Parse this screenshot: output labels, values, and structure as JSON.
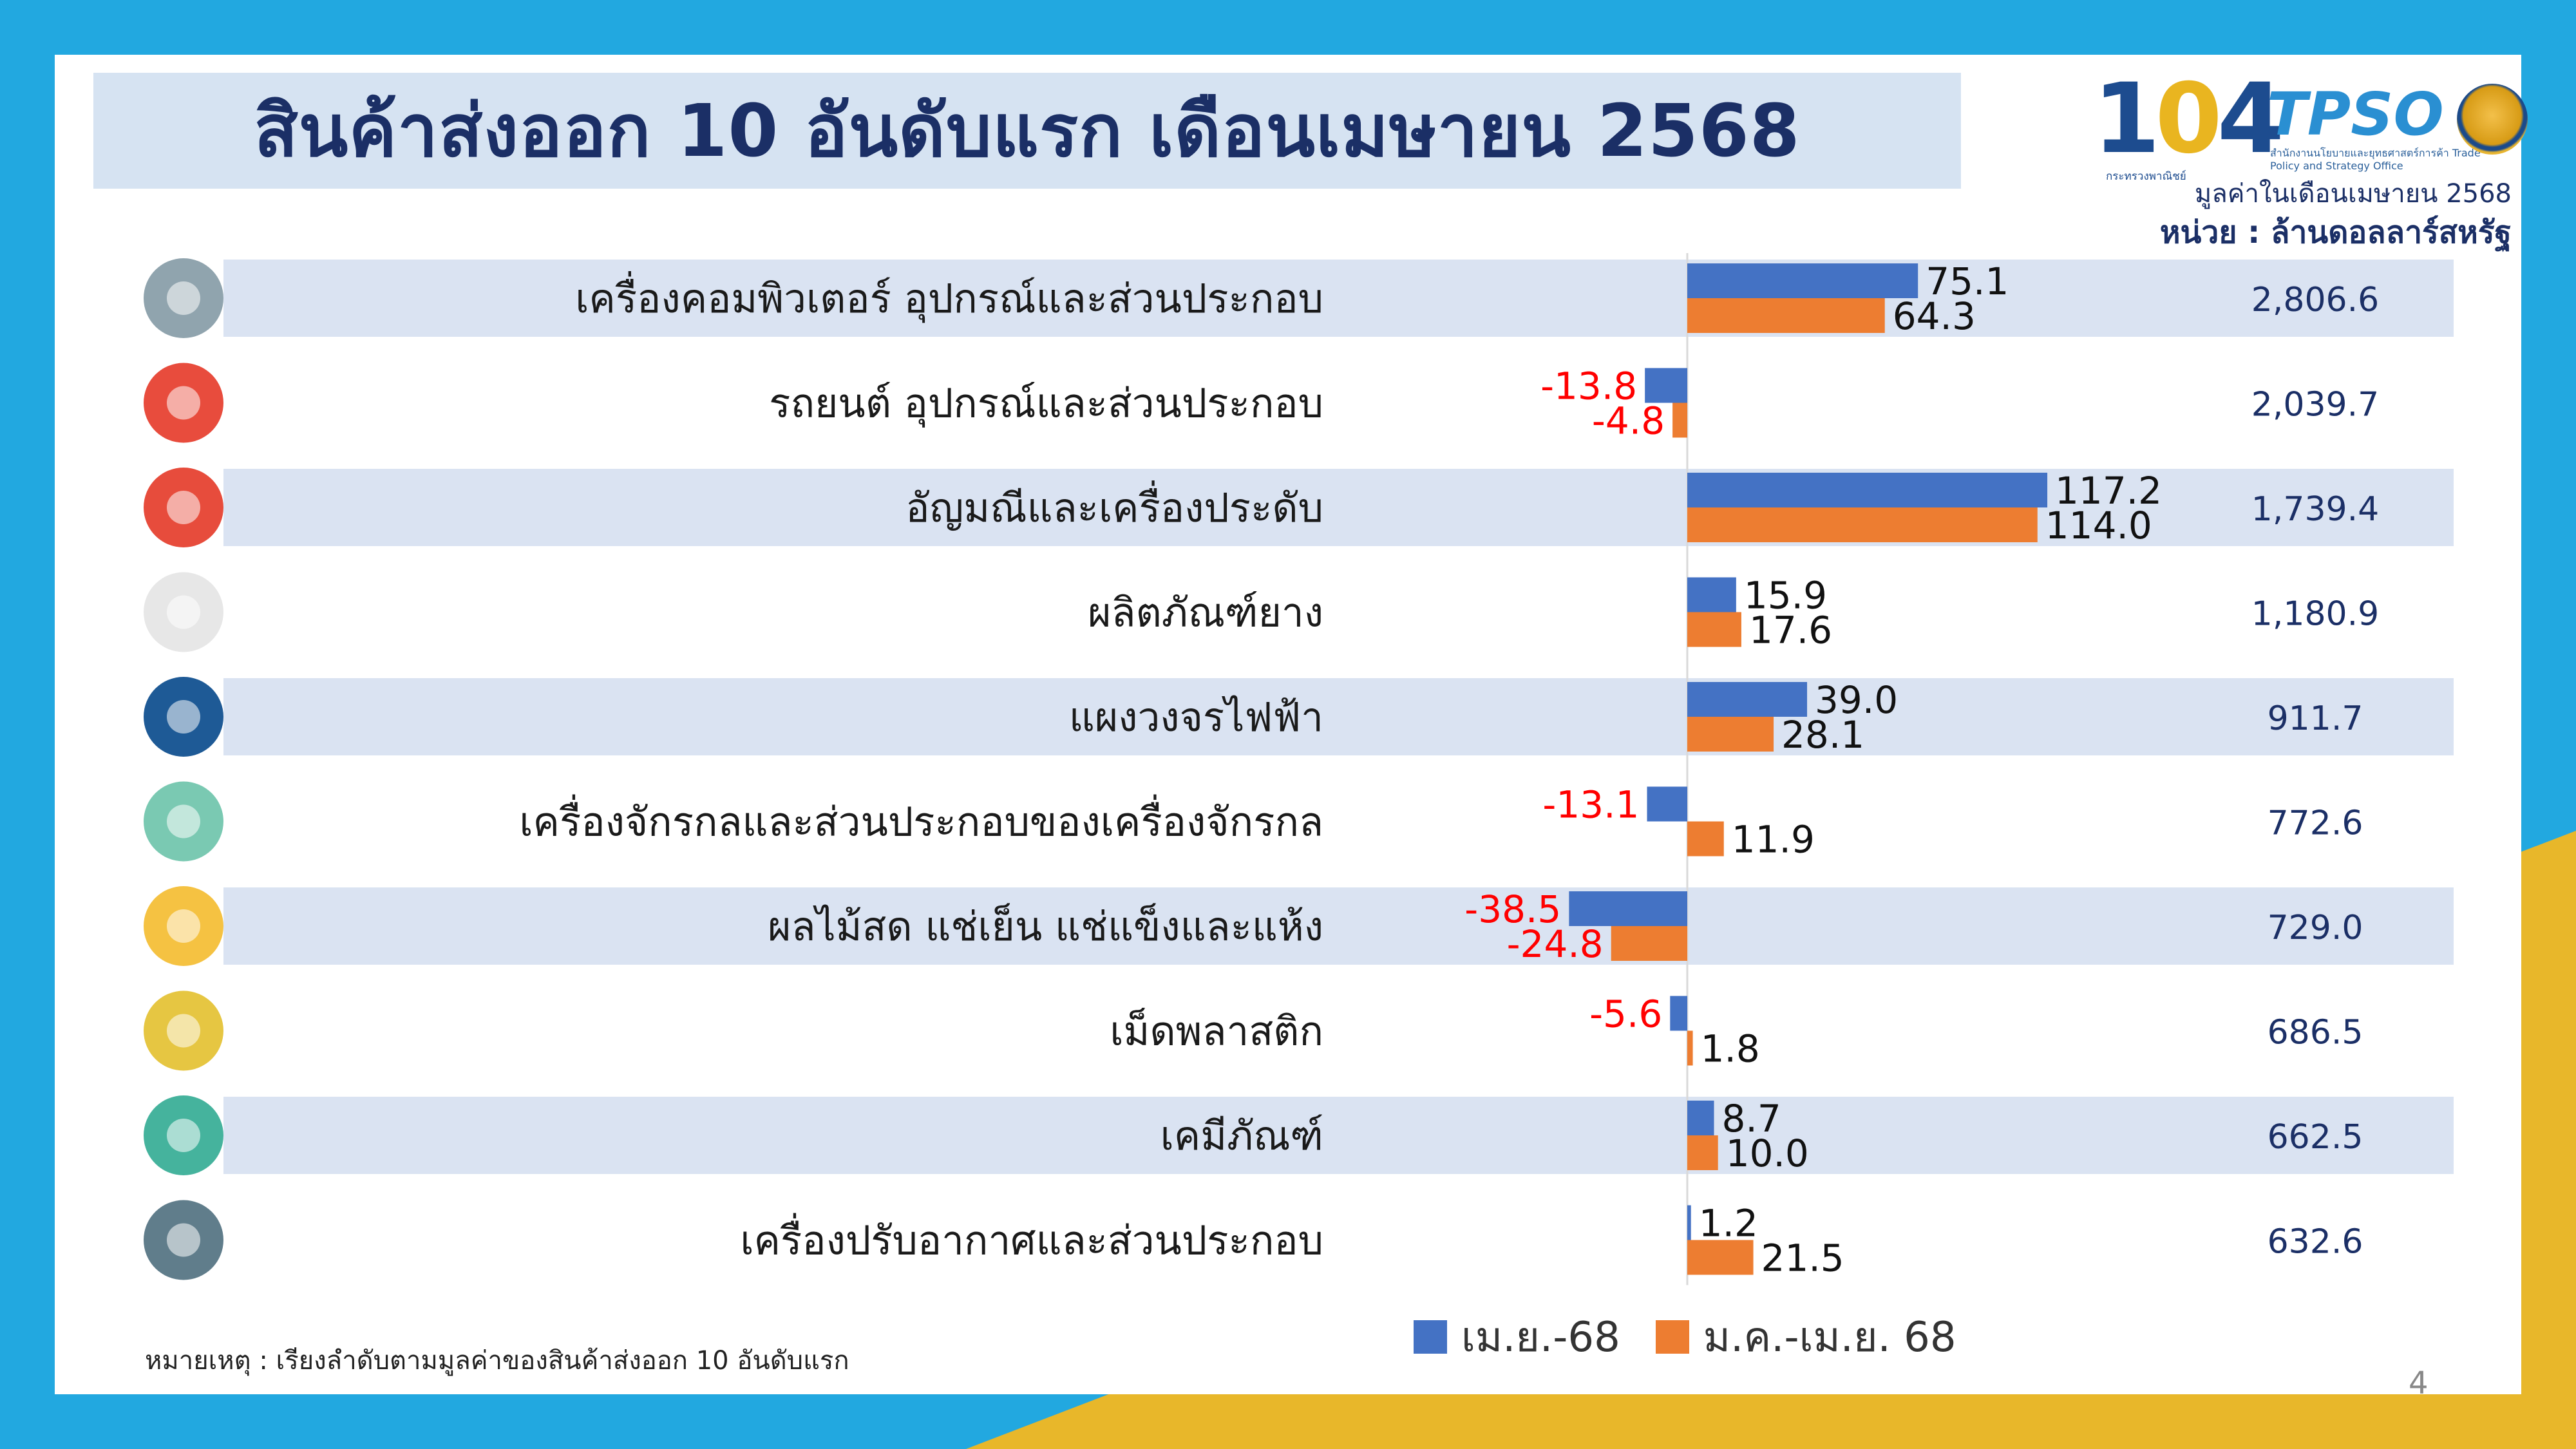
{
  "title": "สินค้าส่งออก 10 อันดับแรก เดือนเมษายน 2568",
  "logo": {
    "number": "104",
    "brand": "TPSO",
    "brand_subtitle": "สำนักงานนโยบายและยุทธศาสตร์การค้า Trade Policy and Strategy Office",
    "ministry": "กระทรวงพาณิชย์"
  },
  "unit_note": {
    "line1": "มูลค่าในเดือนเมษายน 2568",
    "line2": "หน่วย : ล้านดอลลาร์สหรัฐ"
  },
  "colors": {
    "series1": "#4472c4",
    "series2": "#ed7d31",
    "negative_label": "#ff0000",
    "row_band": "#dae3f2",
    "title_text": "#1b2f66"
  },
  "chart_data": {
    "type": "bar",
    "orientation": "horizontal",
    "categories": [
      "เครื่องคอมพิวเตอร์ อุปกรณ์และส่วนประกอบ",
      "รถยนต์ อุปกรณ์และส่วนประกอบ",
      "อัญมณีและเครื่องประดับ",
      "ผลิตภัณฑ์ยาง",
      "แผงวงจรไฟฟ้า",
      "เครื่องจักรกลและส่วนประกอบของเครื่องจักรกล",
      "ผลไม้สด แช่เย็น แช่แข็งและแห้ง",
      "เม็ดพลาสติก",
      "เคมีภัณฑ์",
      "เครื่องปรับอากาศและส่วนประกอบ"
    ],
    "series": [
      {
        "name": "เม.ย.-68",
        "values": [
          75.1,
          -13.8,
          117.2,
          15.9,
          39.0,
          -13.1,
          -38.5,
          -5.6,
          8.7,
          1.2
        ]
      },
      {
        "name": "ม.ค.-เม.ย. 68",
        "values": [
          64.3,
          -4.8,
          114.0,
          17.6,
          28.1,
          11.9,
          -24.8,
          1.8,
          10.0,
          21.5
        ]
      }
    ],
    "value_labels": [
      [
        "75.1",
        "64.3"
      ],
      [
        "-13.8",
        "-4.8"
      ],
      [
        "117.2",
        "114.0"
      ],
      [
        "15.9",
        "17.6"
      ],
      [
        "39.0",
        "28.1"
      ],
      [
        "-13.1",
        "11.9"
      ],
      [
        "-38.5",
        "-24.8"
      ],
      [
        "-5.6",
        "1.8"
      ],
      [
        "8.7",
        "10.0"
      ],
      [
        "1.2",
        "21.5"
      ]
    ],
    "totals": [
      "2,806.6",
      "2,039.7",
      "1,739.4",
      "1,180.9",
      "911.7",
      "772.6",
      "729.0",
      "686.5",
      "662.5",
      "632.6"
    ],
    "icons": [
      "computer-icon",
      "car-icon",
      "diamond-icon",
      "rubber-tapper-icon",
      "circuit-icon",
      "gear-icon",
      "fruit-icon",
      "plastic-bag-icon",
      "chemistry-icon",
      "air-conditioner-icon"
    ],
    "icon_colors": [
      "#90a4ae",
      "#e84c3d",
      "#e74c3c",
      "#e7e7e7",
      "#1e5a96",
      "#7ac9b2",
      "#f5c242",
      "#e6c642",
      "#45b39d",
      "#607d8b"
    ],
    "xlim": [
      -40,
      120
    ],
    "legend_position": "bottom-right"
  },
  "legend": [
    {
      "label": "เม.ย.-68"
    },
    {
      "label": "ม.ค.-เม.ย. 68"
    }
  ],
  "footnote": "หมายเหตุ : เรียงลำดับตามมูลค่าของสินค้าส่งออก 10 อันดับแรก",
  "page_number": "4"
}
